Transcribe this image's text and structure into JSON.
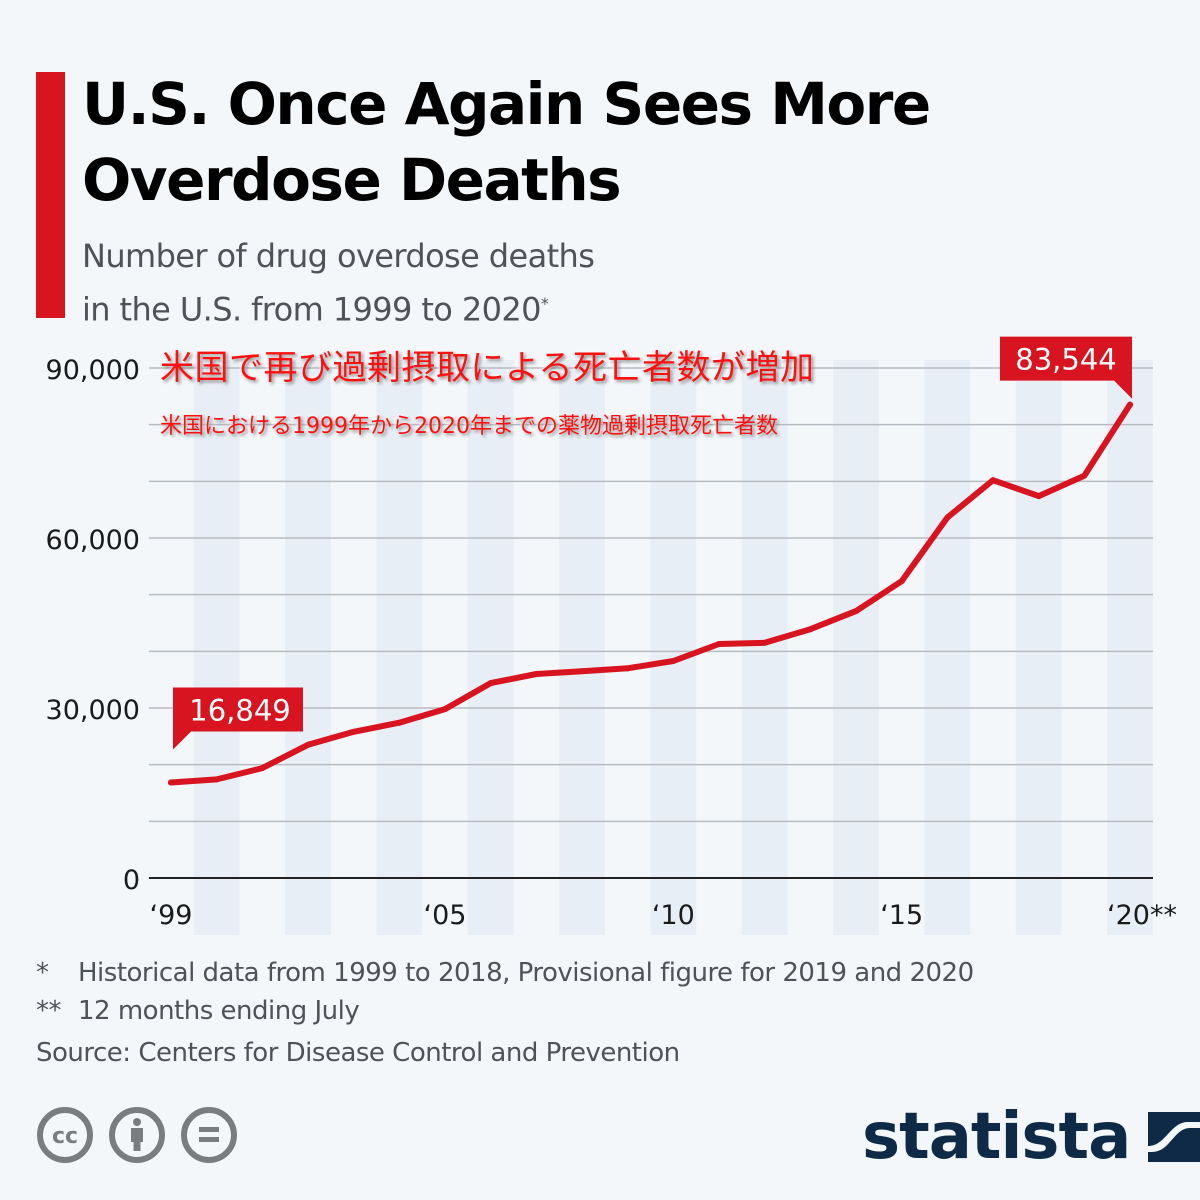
{
  "header": {
    "title_line1": "U.S. Once Again Sees More",
    "title_line2": "Overdose Deaths",
    "subtitle_line1": "Number of drug overdose deaths",
    "subtitle_line2": "in the U.S. from 1999 to 2020",
    "subtitle_mark": "*",
    "accent_color": "#d7141f"
  },
  "overlay": {
    "jp_title": "米国で再び過剰摂取による死亡者数が増加",
    "jp_subtitle": "米国における1999年から2020年までの薬物過剰摂取死亡者数"
  },
  "chart_data": {
    "type": "line",
    "title": "U.S. Once Again Sees More Overdose Deaths",
    "subtitle": "Number of drug overdose deaths in the U.S. from 1999 to 2020*",
    "xlabel": "",
    "ylabel": "",
    "x": [
      1999,
      2000,
      2001,
      2002,
      2003,
      2004,
      2005,
      2006,
      2007,
      2008,
      2009,
      2010,
      2011,
      2012,
      2013,
      2014,
      2015,
      2016,
      2017,
      2018,
      2019,
      2020
    ],
    "x_tick_labels": [
      {
        "year": 1999,
        "label": "‘99"
      },
      {
        "year": 2005,
        "label": "‘05"
      },
      {
        "year": 2010,
        "label": "‘10"
      },
      {
        "year": 2015,
        "label": "‘15"
      },
      {
        "year": 2020,
        "label": "‘20**"
      }
    ],
    "series": [
      {
        "name": "Drug overdose deaths",
        "color": "#d7141f",
        "values": [
          16849,
          17400,
          19400,
          23500,
          25800,
          27400,
          29800,
          34400,
          36000,
          36500,
          37000,
          38300,
          41300,
          41500,
          43900,
          47100,
          52400,
          63600,
          70200,
          67400,
          71000,
          83544
        ]
      }
    ],
    "ylim": [
      0,
      90000
    ],
    "y_ticks": [
      0,
      30000,
      60000,
      90000
    ],
    "y_tick_labels": [
      "0",
      "30,000",
      "60,000",
      "90,000"
    ],
    "gridline_step": 10000,
    "grid": true,
    "legend": "none",
    "annotations": [
      {
        "year": 1999,
        "label": "16,849"
      },
      {
        "year": 2020,
        "label": "83,544"
      }
    ]
  },
  "footer": {
    "note1_mark": "*",
    "note1": "Historical data from 1999 to 2018, Provisional figure for 2019 and 2020",
    "note2_mark": "**",
    "note2": "12 months ending July",
    "source": "Source: Centers for Disease Control and Prevention",
    "license_icons": [
      "cc-icon",
      "attribution-icon",
      "no-derivatives-icon"
    ],
    "brand": "statista",
    "brand_color": "#0f2a47"
  }
}
